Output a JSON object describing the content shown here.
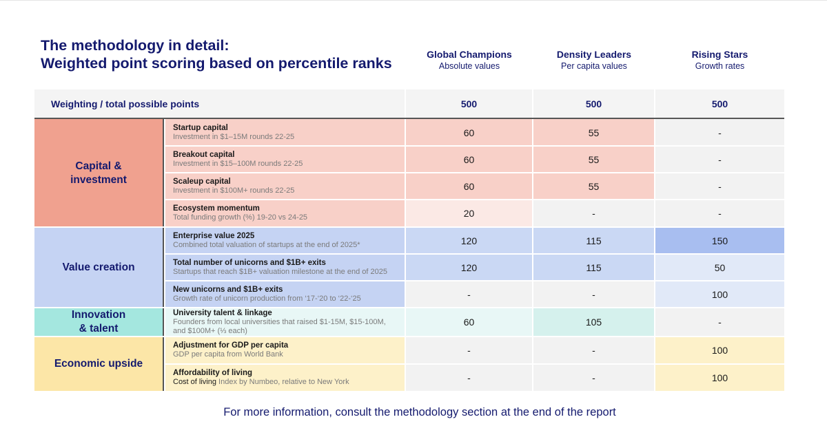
{
  "title_line1": "The methodology in detail:",
  "title_line2": "Weighted point scoring based on percentile ranks",
  "columns": [
    {
      "title": "Global Champions",
      "subtitle": "Absolute values"
    },
    {
      "title": "Density Leaders",
      "subtitle": "Per capita values"
    },
    {
      "title": "Rising Stars",
      "subtitle": "Growth rates"
    }
  ],
  "weighting": {
    "label": "Weighting / total possible points",
    "values": [
      "500",
      "500",
      "500"
    ]
  },
  "categories": [
    {
      "label_line1": "Capital &",
      "label_line2": "investment",
      "color": "#f0a18f"
    },
    {
      "label_line1": "Value creation",
      "label_line2": "",
      "color": "#c5d3f3"
    },
    {
      "label_line1": "Innovation",
      "label_line2": "& talent",
      "color": "#a4e7df"
    },
    {
      "label_line1": "Economic upside",
      "label_line2": "",
      "color": "#fce6a7"
    }
  ],
  "metrics": [
    {
      "title": "Startup capital",
      "sub": "Investment in $1–15M rounds 22-25",
      "values": [
        "60",
        "55",
        "-"
      ]
    },
    {
      "title": "Breakout capital",
      "sub": "Investment in $15–100M rounds 22-25",
      "values": [
        "60",
        "55",
        "-"
      ]
    },
    {
      "title": "Scaleup capital",
      "sub": "Investment in $100M+ rounds 22-25",
      "values": [
        "60",
        "55",
        "-"
      ]
    },
    {
      "title": "Ecosystem momentum",
      "sub": "Total funding growth (%) 19-20 vs 24-25",
      "values": [
        "20",
        "-",
        "-"
      ]
    },
    {
      "title": "Enterprise value 2025",
      "sub": "Combined total valuation of startups at the end of 2025*",
      "values": [
        "120",
        "115",
        "150"
      ]
    },
    {
      "title": "Total number of unicorns and $1B+ exits",
      "sub": "Startups that reach $1B+ valuation milestone at the end of 2025",
      "values": [
        "120",
        "115",
        "50"
      ]
    },
    {
      "title": "New unicorns and $1B+ exits",
      "sub": "Growth rate of unicorn production from ‘17-‘20 to ‘22-‘25",
      "values": [
        "-",
        "-",
        "100"
      ]
    },
    {
      "title": "University talent & linkage",
      "sub": "Founders from local universities that raised $1-15M, $15-100M,",
      "sub2": "and $100M+ (⅓ each)",
      "values": [
        "60",
        "105",
        "-"
      ]
    },
    {
      "title": "Adjustment for GDP per capita",
      "sub": "GDP per capita from World Bank",
      "values": [
        "-",
        "-",
        "100"
      ]
    },
    {
      "title": "Affordability of living",
      "sub_dark": "Cost of living",
      "sub_rest": " Index by Numbeo, relative to New York",
      "values": [
        "-",
        "-",
        "100"
      ]
    }
  ],
  "cell_colors": {
    "neutral": "#f2f2f2",
    "capital_strong": "#f8d0c8",
    "capital_light": "#fbe9e5",
    "value_strong": "#a8bef0",
    "value_mid": "#cad8f4",
    "value_light": "#e1e9f8",
    "innovation_mid": "#d5f1ed",
    "innovation_light": "#e8f7f6",
    "economic": "#fdf1c9"
  },
  "footer": "For more information, consult the methodology section at the end of the report"
}
